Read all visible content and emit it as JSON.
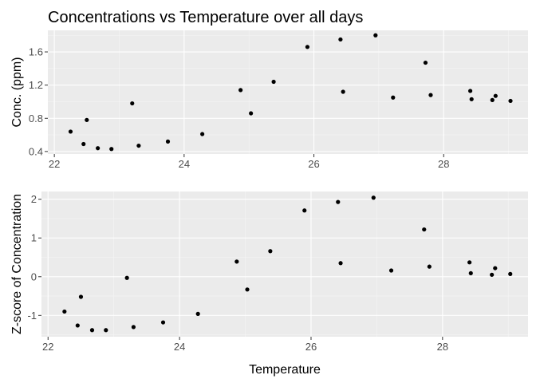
{
  "title": "Concentrations vs Temperature over all days",
  "chart_data": [
    {
      "type": "scatter",
      "xlabel": "",
      "ylabel": "Conc. (ppm)",
      "xlim": [
        21.9,
        29.3
      ],
      "ylim": [
        0.37,
        1.86
      ],
      "x_ticks": [
        22,
        24,
        26,
        28
      ],
      "x_tick_labels": [
        "22",
        "24",
        "26",
        "28"
      ],
      "y_ticks": [
        0.4,
        0.8,
        1.2,
        1.6
      ],
      "y_tick_labels": [
        "0.4",
        "0.8",
        "1.2",
        "1.6"
      ],
      "grid": true,
      "points": [
        {
          "x": 22.25,
          "y": 0.64
        },
        {
          "x": 22.45,
          "y": 0.49
        },
        {
          "x": 22.5,
          "y": 0.78
        },
        {
          "x": 22.67,
          "y": 0.44
        },
        {
          "x": 22.88,
          "y": 0.43
        },
        {
          "x": 23.2,
          "y": 0.98
        },
        {
          "x": 23.3,
          "y": 0.47
        },
        {
          "x": 23.75,
          "y": 0.52
        },
        {
          "x": 24.28,
          "y": 0.61
        },
        {
          "x": 24.87,
          "y": 1.14
        },
        {
          "x": 25.03,
          "y": 0.86
        },
        {
          "x": 25.38,
          "y": 1.24
        },
        {
          "x": 25.9,
          "y": 1.66
        },
        {
          "x": 26.41,
          "y": 1.75
        },
        {
          "x": 26.45,
          "y": 1.12
        },
        {
          "x": 26.95,
          "y": 1.8
        },
        {
          "x": 27.22,
          "y": 1.05
        },
        {
          "x": 27.72,
          "y": 1.47
        },
        {
          "x": 27.8,
          "y": 1.08
        },
        {
          "x": 28.41,
          "y": 1.13
        },
        {
          "x": 28.43,
          "y": 1.03
        },
        {
          "x": 28.75,
          "y": 1.02
        },
        {
          "x": 28.8,
          "y": 1.07
        },
        {
          "x": 29.03,
          "y": 1.01
        }
      ]
    },
    {
      "type": "scatter",
      "xlabel": "Temperature",
      "ylabel": "Z-score of Concentration",
      "xlim": [
        21.9,
        29.3
      ],
      "ylim": [
        -1.55,
        2.2
      ],
      "x_ticks": [
        22,
        24,
        26,
        28
      ],
      "x_tick_labels": [
        "22",
        "24",
        "26",
        "28"
      ],
      "y_ticks": [
        -1,
        0,
        1,
        2
      ],
      "y_tick_labels": [
        "-1",
        "0",
        "1",
        "2"
      ],
      "grid": true,
      "points": [
        {
          "x": 22.25,
          "y": -0.9
        },
        {
          "x": 22.45,
          "y": -1.26
        },
        {
          "x": 22.5,
          "y": -0.52
        },
        {
          "x": 22.67,
          "y": -1.38
        },
        {
          "x": 22.88,
          "y": -1.38
        },
        {
          "x": 23.2,
          "y": -0.03
        },
        {
          "x": 23.3,
          "y": -1.3
        },
        {
          "x": 23.75,
          "y": -1.18
        },
        {
          "x": 24.28,
          "y": -0.96
        },
        {
          "x": 24.87,
          "y": 0.39
        },
        {
          "x": 25.03,
          "y": -0.33
        },
        {
          "x": 25.38,
          "y": 0.66
        },
        {
          "x": 25.9,
          "y": 1.71
        },
        {
          "x": 26.41,
          "y": 1.93
        },
        {
          "x": 26.45,
          "y": 0.35
        },
        {
          "x": 26.95,
          "y": 2.04
        },
        {
          "x": 27.22,
          "y": 0.16
        },
        {
          "x": 27.72,
          "y": 1.22
        },
        {
          "x": 27.8,
          "y": 0.26
        },
        {
          "x": 28.41,
          "y": 0.37
        },
        {
          "x": 28.43,
          "y": 0.09
        },
        {
          "x": 28.75,
          "y": 0.05
        },
        {
          "x": 28.8,
          "y": 0.22
        },
        {
          "x": 29.03,
          "y": 0.07
        }
      ]
    }
  ],
  "colors": {
    "panel": "#ebebeb",
    "grid_major": "#ffffff",
    "grid_minor": "#f5f5f5",
    "point": "#000000",
    "tick_text": "#4d4d4d",
    "tick_mark": "#333333"
  }
}
